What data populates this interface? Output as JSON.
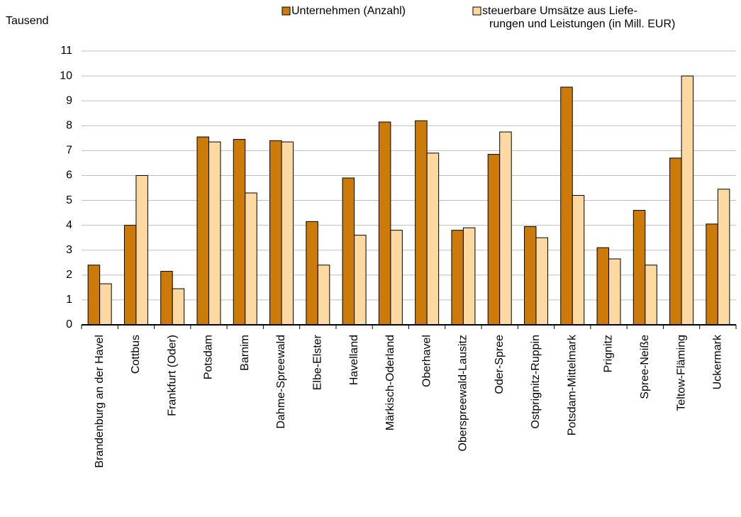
{
  "chart_data": {
    "type": "bar",
    "y_axis_label": "Tausend",
    "categories": [
      "Brandenburg an der Havel",
      "Cottbus",
      "Frankfurt (Oder)",
      "Potsdam",
      "Barnim",
      "Dahme-Spreewald",
      "Elbe-Elster",
      "Havelland",
      "Märkisch-Oderland",
      "Oberhavel",
      "Oberspreewald-Lausitz",
      "Oder-Spree",
      "Ostprignitz-Ruppin",
      "Potsdam-Mittelmark",
      "Prignitz",
      "Spree-Neiße",
      "Teltow-Fläming",
      "Uckermark"
    ],
    "series": [
      {
        "name": "Unternehmen (Anzahl)",
        "color": "#cc7a0a",
        "values": [
          2.4,
          4.0,
          2.15,
          7.55,
          7.45,
          7.4,
          4.15,
          5.9,
          8.15,
          8.2,
          3.8,
          6.85,
          3.95,
          9.55,
          3.1,
          4.6,
          6.7,
          4.05
        ]
      },
      {
        "name": "steuerbare Umsätze aus Liefe-\nrungen und Leistungen (in Mill. EUR)",
        "color": "#fdd9a2",
        "values": [
          1.65,
          6.0,
          1.45,
          7.35,
          5.3,
          7.35,
          2.4,
          3.6,
          3.8,
          6.9,
          3.9,
          7.75,
          3.5,
          5.2,
          2.65,
          2.4,
          10.0,
          5.45
        ]
      }
    ],
    "ylim": [
      0,
      11
    ],
    "yticks": [
      0,
      1,
      2,
      3,
      4,
      5,
      6,
      7,
      8,
      9,
      10,
      11
    ],
    "grid": true
  }
}
